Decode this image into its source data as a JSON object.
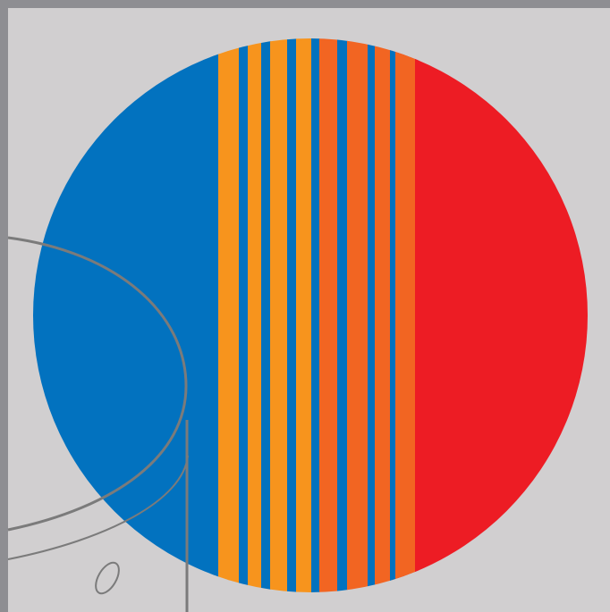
{
  "artwork": {
    "colors": {
      "frame": "#8e8e92",
      "background": "#d1cfd0",
      "blue": "#0272bf",
      "red": "#ed1c24",
      "light_orange": "#f7941d",
      "dark_orange": "#f26522",
      "line": "#7b7b7b"
    },
    "stripes": [
      "blue",
      "light_orange",
      "blue",
      "light_orange",
      "blue",
      "light_orange",
      "blue",
      "light_orange",
      "blue",
      "dark_orange",
      "blue",
      "dark_orange",
      "blue",
      "dark_orange",
      "blue",
      "dark_orange",
      "red"
    ]
  }
}
